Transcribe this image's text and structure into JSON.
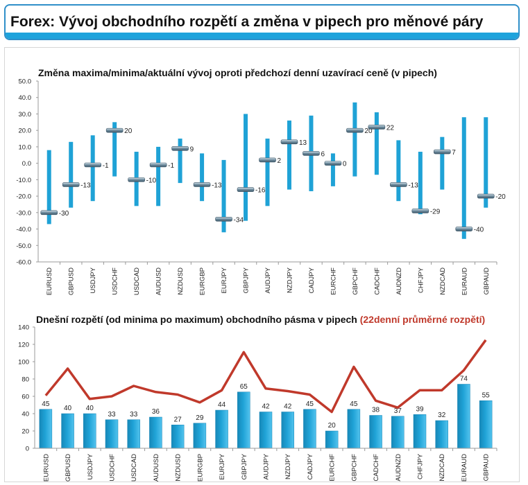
{
  "page": {
    "title": "Forex: Vývoj obchodního rozpětí a změna v pipech pro měnové páry"
  },
  "colors": {
    "accent": "#1ea3dc",
    "bar": "#1fa2d6",
    "line": "#c0392b"
  },
  "chart_data": [
    {
      "type": "range",
      "title": "Změna maxima/minima/aktuální vývoj oproti předchozí denní uzavírací ceně (v pipech)",
      "categories": [
        "EURUSD",
        "GBPUSD",
        "USDJPY",
        "USDCHF",
        "USDCAD",
        "AUDUSD",
        "NZDUSD",
        "EURGBP",
        "EURJPY",
        "GBPJPY",
        "AUDJPY",
        "NZDJPY",
        "CADJPY",
        "EURCHF",
        "GBPCHF",
        "CADCHF",
        "AUDNZD",
        "CHFJPY",
        "NZDCAD",
        "EURAUD",
        "GBPAUD"
      ],
      "high": [
        8,
        13,
        17,
        25,
        7,
        10,
        15,
        6,
        2,
        30,
        15,
        26,
        29,
        6,
        37,
        31,
        14,
        7,
        16,
        28,
        28
      ],
      "low": [
        -37,
        -27,
        -23,
        -8,
        -26,
        -26,
        -12,
        -23,
        -42,
        -35,
        -26,
        -16,
        -17,
        -14,
        -8,
        -7,
        -23,
        -31,
        -16,
        -46,
        -27
      ],
      "current": [
        -30,
        -13,
        -1,
        20,
        -10,
        -1,
        9,
        -13,
        -34,
        -16,
        2,
        13,
        6,
        0,
        20,
        22,
        -13,
        -29,
        7,
        -40,
        -20
      ],
      "ylim": [
        -60,
        50
      ],
      "yticks": [
        "50.0",
        "40.0",
        "30.0",
        "20.0",
        "10.0",
        "0.0",
        "-10.0",
        "-20.0",
        "-30.0",
        "-40.0",
        "-50.0",
        "-60.0"
      ]
    },
    {
      "type": "bar+line",
      "title": "Dnešní rozpětí (od minima po maximum) obchodního pásma v pipech",
      "title_red": "(22denní průměrné rozpětí)",
      "categories": [
        "EURUSD",
        "GBPUSD",
        "USDJPY",
        "USDCHF",
        "USDCAD",
        "AUDUSD",
        "NZDUSD",
        "EURGBP",
        "EURJPY",
        "GBPJPY",
        "AUDJPY",
        "NZDJPY",
        "CADJPY",
        "EURCHF",
        "GBPCHF",
        "CADCHF",
        "AUDNZD",
        "CHFJPY",
        "NZDCAD",
        "EURAUD",
        "GBPAUD"
      ],
      "values": [
        45,
        40,
        40,
        33,
        33,
        36,
        27,
        29,
        44,
        65,
        42,
        42,
        45,
        20,
        45,
        38,
        37,
        39,
        32,
        74,
        55
      ],
      "average": [
        61,
        92,
        57,
        60,
        72,
        65,
        62,
        53,
        67,
        111,
        69,
        66,
        62,
        42,
        94,
        55,
        47,
        67,
        67,
        90,
        125
      ],
      "ylim": [
        0,
        140
      ],
      "yticks": [
        "140",
        "120",
        "100",
        "80",
        "60",
        "40",
        "20",
        "0"
      ]
    }
  ]
}
